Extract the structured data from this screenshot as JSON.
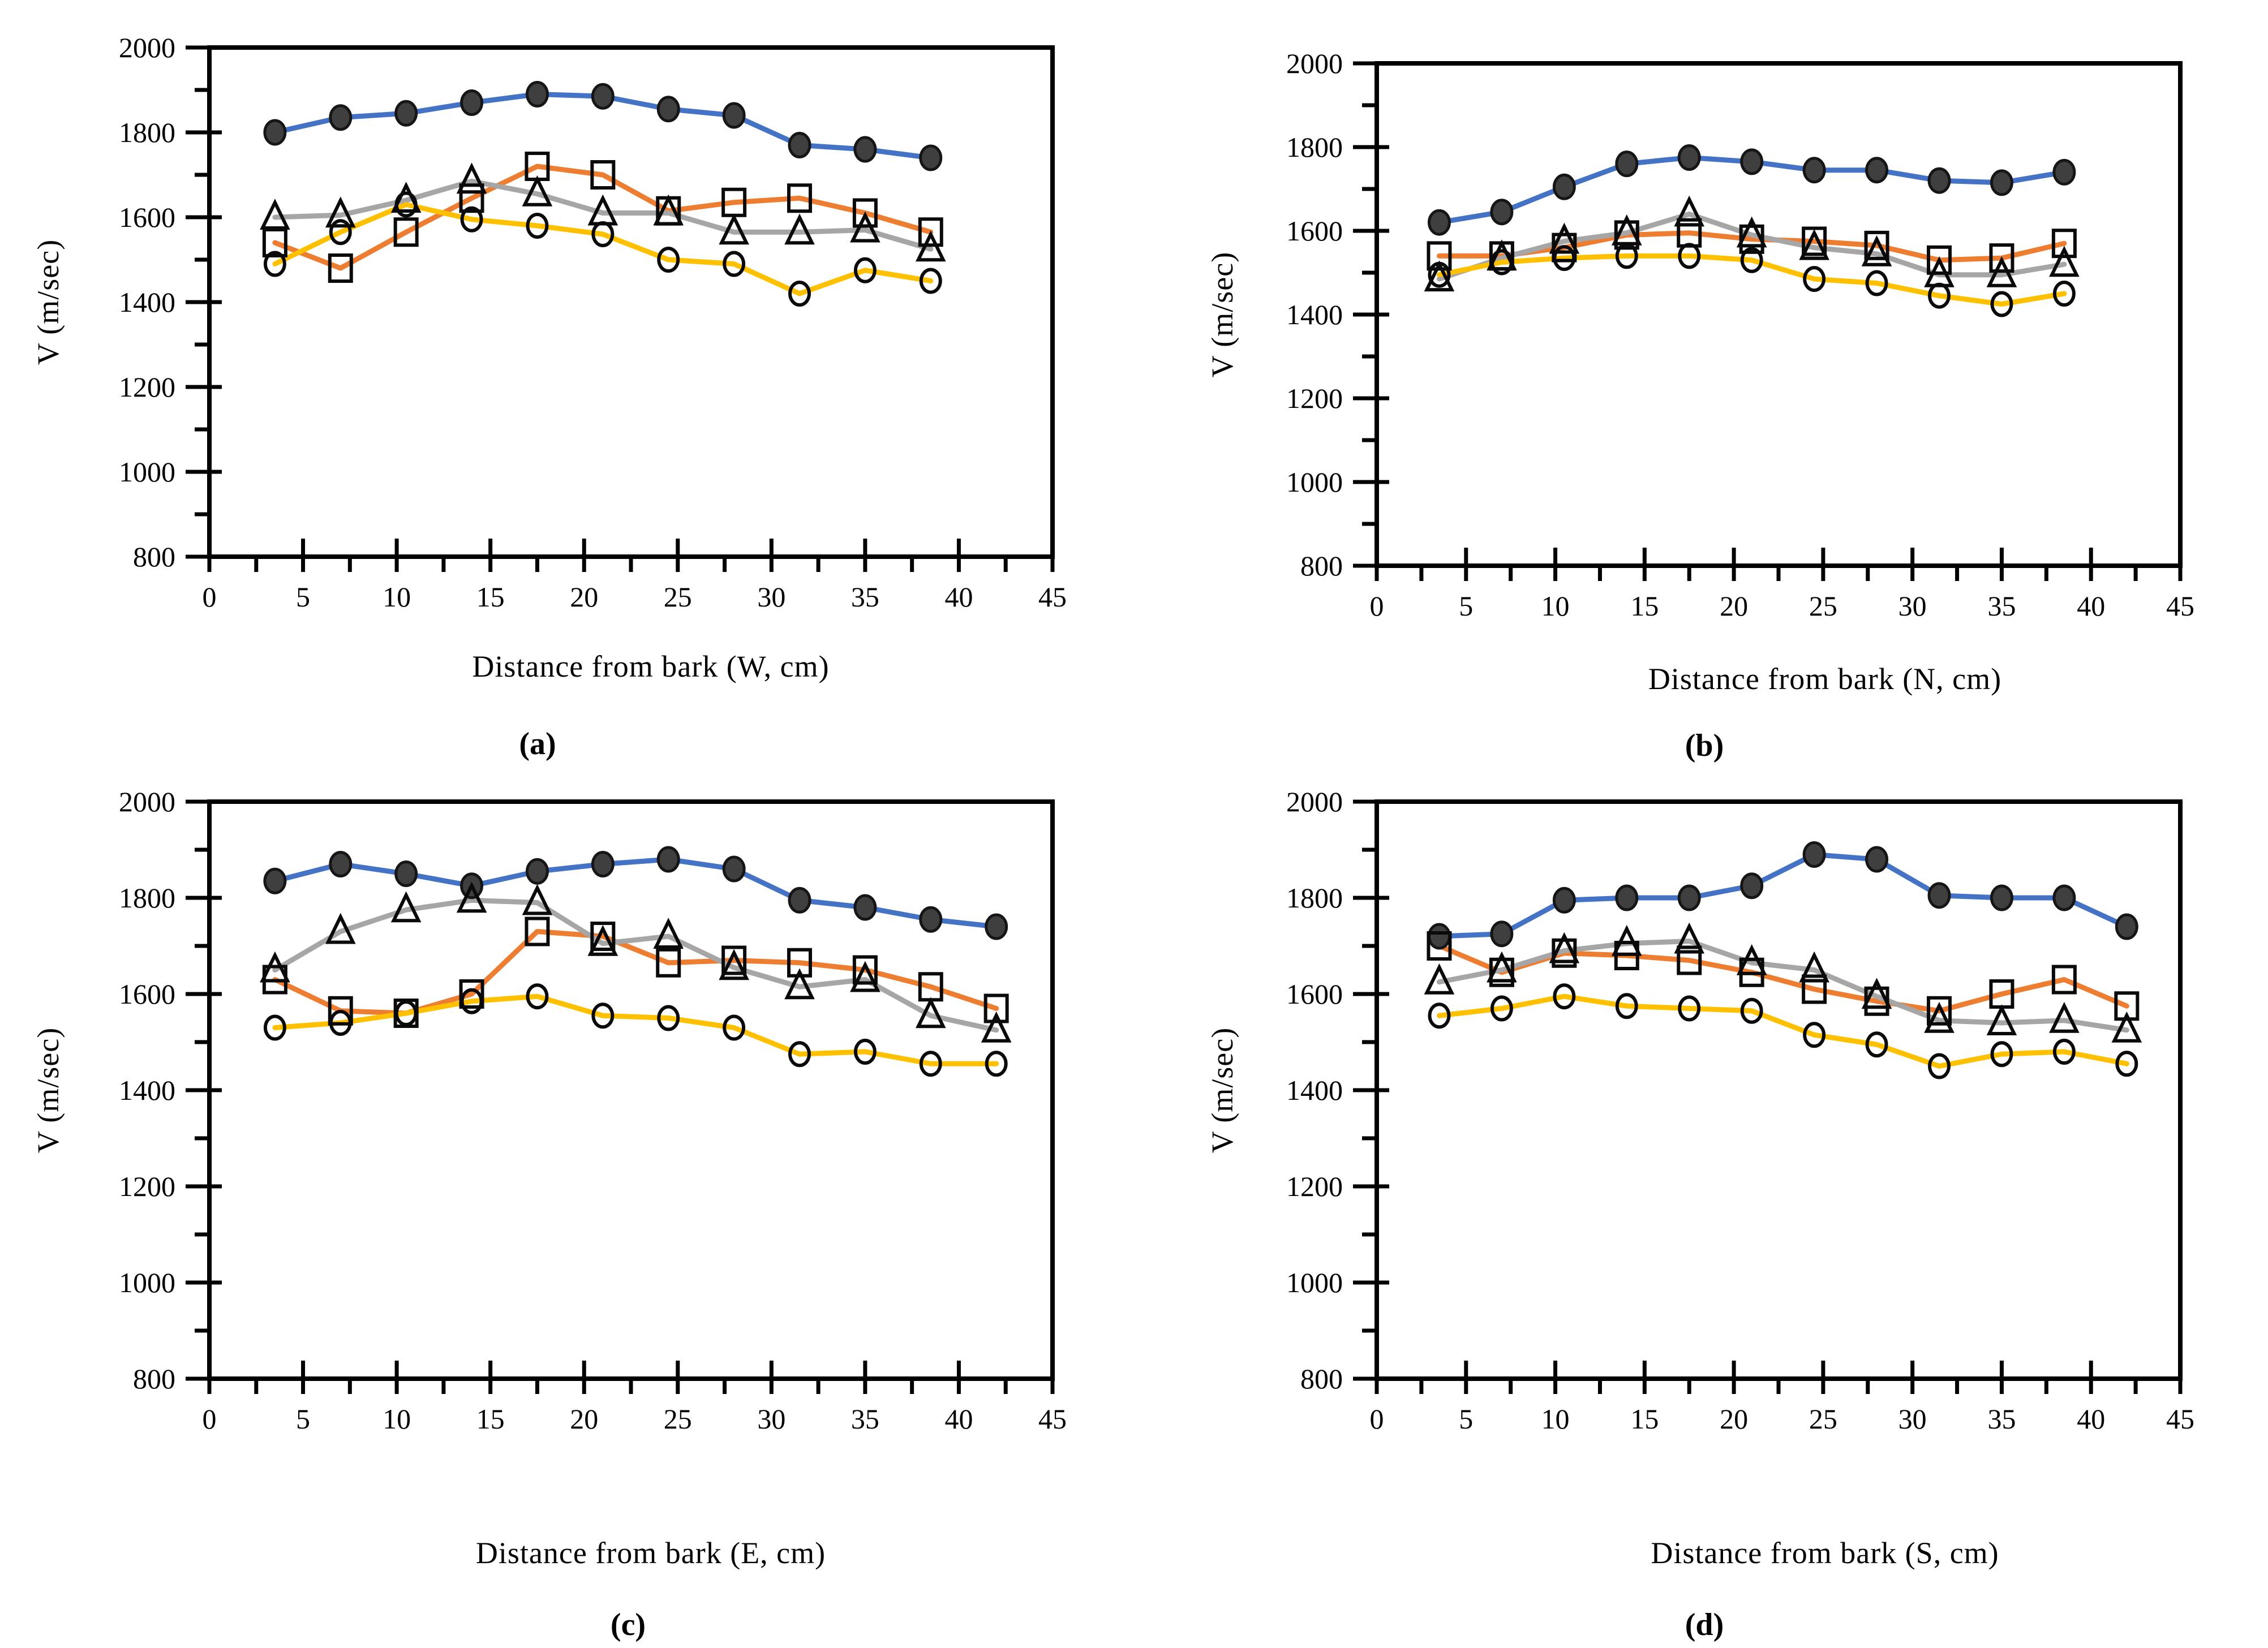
{
  "chart_data": [
    {
      "id": "a",
      "type": "line",
      "panel_letter": "(a)",
      "xlabel": "Distance from bark (W, cm)",
      "ylabel": "V (m/sec)",
      "xlim": [
        0,
        45
      ],
      "ylim": [
        800,
        2000
      ],
      "xticks": [
        0,
        5,
        10,
        15,
        20,
        25,
        30,
        35,
        40,
        45
      ],
      "yticks": [
        800,
        1000,
        1200,
        1400,
        1600,
        1800,
        2000
      ],
      "minor_x_step": 2.5,
      "minor_y_step": 100,
      "grid": false,
      "legend": "none",
      "x": [
        3.5,
        7,
        10.5,
        14,
        17.5,
        21,
        24.5,
        28,
        31.5,
        35,
        38.5
      ],
      "series": [
        {
          "name": "filled-circle-series",
          "marker": "filled-circle",
          "line_color": "#4472C4",
          "marker_color": "#3F3F3F",
          "values": [
            1800,
            1835,
            1845,
            1870,
            1890,
            1885,
            1855,
            1840,
            1770,
            1760,
            1740
          ]
        },
        {
          "name": "open-square-series",
          "marker": "open-square",
          "line_color": "#ED7D31",
          "marker_color": "#0A0A0A",
          "values": [
            1540,
            1480,
            1565,
            1645,
            1720,
            1700,
            1615,
            1635,
            1645,
            1610,
            1565
          ]
        },
        {
          "name": "open-triangle-series",
          "marker": "open-triangle",
          "line_color": "#A6A6A6",
          "marker_color": "#0A0A0A",
          "values": [
            1600,
            1605,
            1640,
            1685,
            1655,
            1610,
            1610,
            1565,
            1565,
            1570,
            1525
          ]
        },
        {
          "name": "open-circle-series",
          "marker": "open-circle",
          "line_color": "#FFC000",
          "marker_color": "#0A0A0A",
          "values": [
            1490,
            1565,
            1630,
            1595,
            1580,
            1560,
            1500,
            1490,
            1420,
            1475,
            1450
          ]
        }
      ]
    },
    {
      "id": "b",
      "type": "line",
      "panel_letter": "(b)",
      "xlabel": "Distance from bark (N, cm)",
      "ylabel": "V (m/sec)",
      "xlim": [
        0,
        45
      ],
      "ylim": [
        800,
        2000
      ],
      "xticks": [
        0,
        5,
        10,
        15,
        20,
        25,
        30,
        35,
        40,
        45
      ],
      "yticks": [
        800,
        1000,
        1200,
        1400,
        1600,
        1800,
        2000
      ],
      "minor_x_step": 2.5,
      "minor_y_step": 100,
      "grid": false,
      "legend": "none",
      "x": [
        3.5,
        7,
        10.5,
        14,
        17.5,
        21,
        24.5,
        28,
        31.5,
        35,
        38.5
      ],
      "series": [
        {
          "name": "filled-circle-series",
          "marker": "filled-circle",
          "line_color": "#4472C4",
          "marker_color": "#3F3F3F",
          "values": [
            1620,
            1645,
            1705,
            1760,
            1775,
            1765,
            1745,
            1745,
            1720,
            1715,
            1740
          ]
        },
        {
          "name": "open-square-series",
          "marker": "open-square",
          "line_color": "#ED7D31",
          "marker_color": "#0A0A0A",
          "values": [
            1540,
            1540,
            1560,
            1590,
            1595,
            1580,
            1575,
            1565,
            1530,
            1535,
            1570
          ]
        },
        {
          "name": "open-triangle-series",
          "marker": "open-triangle",
          "line_color": "#A6A6A6",
          "marker_color": "#0A0A0A",
          "values": [
            1485,
            1535,
            1575,
            1595,
            1640,
            1590,
            1560,
            1545,
            1495,
            1495,
            1520
          ]
        },
        {
          "name": "open-circle-series",
          "marker": "open-circle",
          "line_color": "#FFC000",
          "marker_color": "#0A0A0A",
          "values": [
            1495,
            1525,
            1535,
            1540,
            1540,
            1530,
            1485,
            1475,
            1445,
            1425,
            1450
          ]
        }
      ]
    },
    {
      "id": "c",
      "type": "line",
      "panel_letter": "(c)",
      "xlabel": "Distance from bark (E, cm)",
      "ylabel": "V (m/sec)",
      "xlim": [
        0,
        45
      ],
      "ylim": [
        800,
        2000
      ],
      "xticks": [
        0,
        5,
        10,
        15,
        20,
        25,
        30,
        35,
        40,
        45
      ],
      "yticks": [
        800,
        1000,
        1200,
        1400,
        1600,
        1800,
        2000
      ],
      "minor_x_step": 2.5,
      "minor_y_step": 100,
      "grid": false,
      "legend": "none",
      "x": [
        3.5,
        7,
        10.5,
        14,
        17.5,
        21,
        24.5,
        28,
        31.5,
        35,
        38.5,
        42
      ],
      "series": [
        {
          "name": "filled-circle-series",
          "marker": "filled-circle",
          "line_color": "#4472C4",
          "marker_color": "#3F3F3F",
          "values": [
            1835,
            1870,
            1850,
            1825,
            1855,
            1870,
            1880,
            1860,
            1795,
            1780,
            1755,
            1740
          ]
        },
        {
          "name": "open-square-series",
          "marker": "open-square",
          "line_color": "#ED7D31",
          "marker_color": "#0A0A0A",
          "values": [
            1630,
            1565,
            1560,
            1600,
            1730,
            1720,
            1665,
            1670,
            1665,
            1650,
            1615,
            1570
          ]
        },
        {
          "name": "open-triangle-series",
          "marker": "open-triangle",
          "line_color": "#A6A6A6",
          "marker_color": "#0A0A0A",
          "values": [
            1650,
            1730,
            1775,
            1795,
            1790,
            1705,
            1720,
            1655,
            1615,
            1630,
            1555,
            1525
          ]
        },
        {
          "name": "open-circle-series",
          "marker": "open-circle",
          "line_color": "#FFC000",
          "marker_color": "#0A0A0A",
          "values": [
            1530,
            1540,
            1560,
            1585,
            1595,
            1555,
            1550,
            1530,
            1475,
            1480,
            1455,
            1455
          ]
        }
      ]
    },
    {
      "id": "d",
      "type": "line",
      "panel_letter": "(d)",
      "xlabel": "Distance from bark (S, cm)",
      "ylabel": "V (m/sec)",
      "xlim": [
        0,
        45
      ],
      "ylim": [
        800,
        2000
      ],
      "xticks": [
        0,
        5,
        10,
        15,
        20,
        25,
        30,
        35,
        40,
        45
      ],
      "yticks": [
        800,
        1000,
        1200,
        1400,
        1600,
        1800,
        2000
      ],
      "minor_x_step": 2.5,
      "minor_y_step": 100,
      "grid": false,
      "legend": "none",
      "x": [
        3.5,
        7,
        10.5,
        14,
        17.5,
        21,
        24.5,
        28,
        31.5,
        35,
        38.5,
        42
      ],
      "series": [
        {
          "name": "filled-circle-series",
          "marker": "filled-circle",
          "line_color": "#4472C4",
          "marker_color": "#3F3F3F",
          "values": [
            1720,
            1725,
            1795,
            1800,
            1800,
            1825,
            1890,
            1880,
            1805,
            1800,
            1800,
            1740
          ]
        },
        {
          "name": "open-square-series",
          "marker": "open-square",
          "line_color": "#ED7D31",
          "marker_color": "#0A0A0A",
          "values": [
            1700,
            1645,
            1685,
            1680,
            1670,
            1645,
            1610,
            1585,
            1565,
            1600,
            1630,
            1575
          ]
        },
        {
          "name": "open-triangle-series",
          "marker": "open-triangle",
          "line_color": "#A6A6A6",
          "marker_color": "#0A0A0A",
          "values": [
            1625,
            1650,
            1690,
            1705,
            1710,
            1665,
            1650,
            1595,
            1545,
            1540,
            1545,
            1525
          ]
        },
        {
          "name": "open-circle-series",
          "marker": "open-circle",
          "line_color": "#FFC000",
          "marker_color": "#0A0A0A",
          "values": [
            1555,
            1570,
            1595,
            1575,
            1570,
            1565,
            1515,
            1495,
            1450,
            1475,
            1480,
            1455
          ]
        }
      ]
    }
  ]
}
